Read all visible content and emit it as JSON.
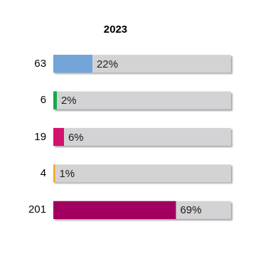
{
  "chart_data": {
    "type": "bar",
    "orientation": "horizontal",
    "title": "2023",
    "categories": [
      "63",
      "6",
      "19",
      "4",
      "201"
    ],
    "values": [
      22,
      2,
      6,
      1,
      69
    ],
    "value_labels": [
      "22%",
      "2%",
      "6%",
      "1%",
      "69%"
    ],
    "colors": [
      "#73a5d8",
      "#17a84b",
      "#d3126c",
      "#f4a81d",
      "#a2005f"
    ],
    "xlim": [
      0,
      100
    ],
    "grid": false,
    "data_labels": true,
    "tick_labels": "y"
  }
}
